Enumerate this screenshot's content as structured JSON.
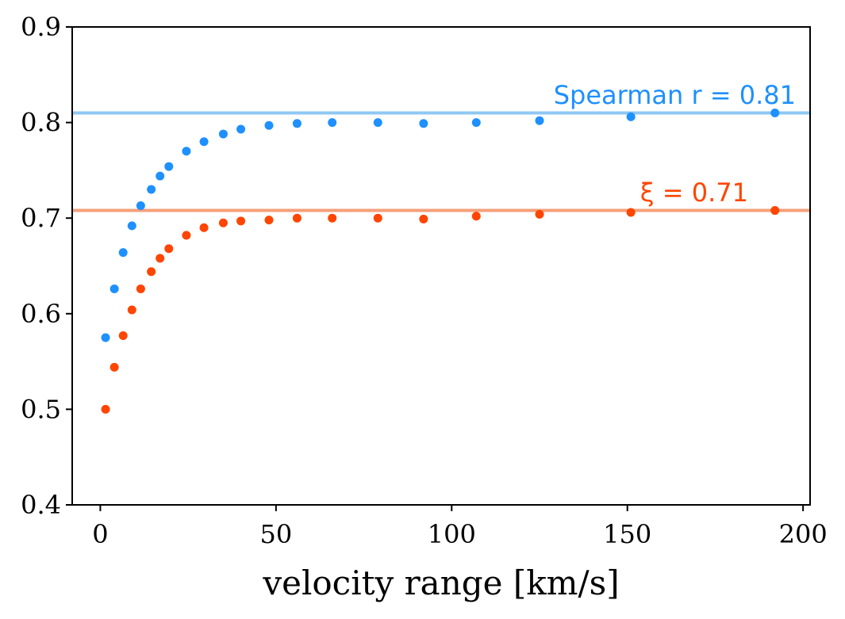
{
  "chart_data": {
    "type": "scatter",
    "title": "",
    "xlabel": "velocity range [km/s]",
    "ylabel": "",
    "xlim": [
      -8,
      202
    ],
    "ylim": [
      0.4,
      0.9
    ],
    "xticks": [
      0,
      50,
      100,
      150,
      200
    ],
    "xtick_labels": [
      "0",
      "50",
      "100",
      "150",
      "200"
    ],
    "yticks": [
      0.4,
      0.5,
      0.6,
      0.7,
      0.8,
      0.9
    ],
    "ytick_labels": [
      "0.4",
      "0.5",
      "0.6",
      "0.7",
      "0.8",
      "0.9"
    ],
    "grid": false,
    "series": [
      {
        "name": "Spearman r",
        "color": "#1e90ff",
        "x": [
          1.5,
          4,
          6.5,
          9,
          11.5,
          14.5,
          17,
          19.5,
          24.5,
          29.5,
          35,
          40,
          48,
          56,
          66,
          79,
          92,
          107,
          125,
          151,
          192
        ],
        "values": [
          0.575,
          0.626,
          0.664,
          0.692,
          0.713,
          0.73,
          0.744,
          0.754,
          0.77,
          0.78,
          0.788,
          0.793,
          0.797,
          0.799,
          0.8,
          0.8,
          0.799,
          0.8,
          0.802,
          0.806,
          0.81
        ]
      },
      {
        "name": "xi",
        "color": "#ff4500",
        "x": [
          1.5,
          4,
          6.5,
          9,
          11.5,
          14.5,
          17,
          19.5,
          24.5,
          29.5,
          35,
          40,
          48,
          56,
          66,
          79,
          92,
          107,
          125,
          151,
          192
        ],
        "values": [
          0.5,
          0.544,
          0.577,
          0.604,
          0.626,
          0.644,
          0.658,
          0.668,
          0.682,
          0.69,
          0.695,
          0.697,
          0.698,
          0.7,
          0.7,
          0.7,
          0.699,
          0.702,
          0.704,
          0.706,
          0.708
        ]
      }
    ],
    "reference_lines": [
      {
        "name": "spearman-line",
        "y": 0.81,
        "color": "#8ec8f4"
      },
      {
        "name": "xi-line",
        "y": 0.708,
        "color": "#f5a07a"
      }
    ],
    "annotations": [
      {
        "name": "spearman-annotation",
        "text": "Spearman r = 0.81",
        "color": "#1e90ff"
      },
      {
        "name": "xi-annotation",
        "text": "ξ = 0.71",
        "color": "#ff4500"
      }
    ]
  }
}
